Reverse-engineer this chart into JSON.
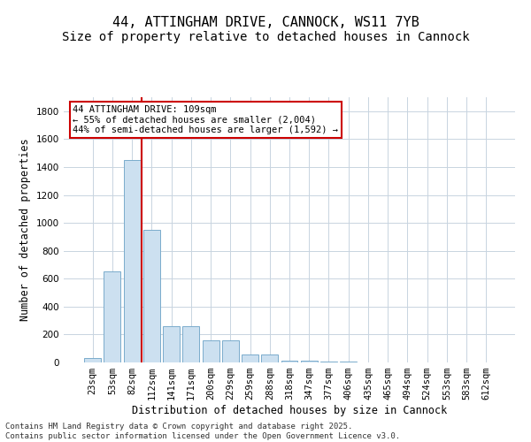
{
  "title": "44, ATTINGHAM DRIVE, CANNOCK, WS11 7YB",
  "subtitle": "Size of property relative to detached houses in Cannock",
  "xlabel": "Distribution of detached houses by size in Cannock",
  "ylabel": "Number of detached properties",
  "categories": [
    "23sqm",
    "53sqm",
    "82sqm",
    "112sqm",
    "141sqm",
    "171sqm",
    "200sqm",
    "229sqm",
    "259sqm",
    "288sqm",
    "318sqm",
    "347sqm",
    "377sqm",
    "406sqm",
    "435sqm",
    "465sqm",
    "494sqm",
    "524sqm",
    "553sqm",
    "583sqm",
    "612sqm"
  ],
  "values": [
    30,
    650,
    1450,
    950,
    262,
    262,
    157,
    157,
    60,
    60,
    15,
    15,
    5,
    5,
    3,
    3,
    2,
    2,
    1,
    1,
    0
  ],
  "bar_color": "#cce0f0",
  "bar_edge_color": "#7aabcc",
  "vline_color": "#cc0000",
  "vline_pos": 2.5,
  "annotation_text": "44 ATTINGHAM DRIVE: 109sqm\n← 55% of detached houses are smaller (2,004)\n44% of semi-detached houses are larger (1,592) →",
  "annotation_box_color": "#cc0000",
  "ylim": [
    0,
    1900
  ],
  "yticks": [
    0,
    200,
    400,
    600,
    800,
    1000,
    1200,
    1400,
    1600,
    1800
  ],
  "bg_color": "#ffffff",
  "grid_color": "#c8d4e0",
  "footer_line1": "Contains HM Land Registry data © Crown copyright and database right 2025.",
  "footer_line2": "Contains public sector information licensed under the Open Government Licence v3.0.",
  "title_fontsize": 11,
  "subtitle_fontsize": 10,
  "axis_label_fontsize": 8.5,
  "tick_fontsize": 7.5,
  "annotation_fontsize": 7.5,
  "footer_fontsize": 6.5
}
